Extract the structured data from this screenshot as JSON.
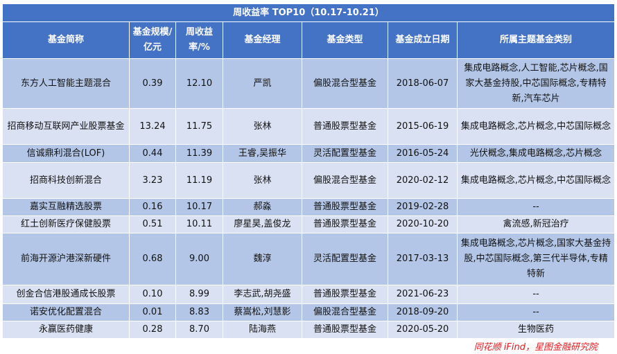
{
  "title": "周收益率 TOP10（10.17-10.21）",
  "headers": [
    "基金简称",
    "基金规模/亿元",
    "周收益率/%",
    "基金经理",
    "基金类型",
    "基金成立日期",
    "所属主题基金类别"
  ],
  "rows": [
    [
      "东方人工智能主题混合",
      "0.39",
      "12.10",
      "严凯",
      "偏股混合型基金",
      "2018-06-07",
      "集成电路概念,人工智能,芯片概念,国家大基金持股,中芯国际概念,专精特新,汽车芯片"
    ],
    [
      "招商移动互联网产业股票基金",
      "13.24",
      "11.75",
      "张林",
      "普通股票型基金",
      "2015-06-19",
      "集成电路概念,芯片概念,中芯国际概念"
    ],
    [
      "信诚鼎利混合(LOF)",
      "0.44",
      "11.39",
      "王睿,吴振华",
      "灵活配置型基金",
      "2016-05-24",
      "光伏概念,集成电路概念,芯片概念"
    ],
    [
      "招商科技创新混合",
      "3.23",
      "11.19",
      "张林",
      "偏股混合型基金",
      "2020-02-12",
      "集成电路概念,芯片概念,中芯国际概念"
    ],
    [
      "嘉实互融精选股票",
      "0.16",
      "10.17",
      "郝淼",
      "普通股票型基金",
      "2019-02-28",
      "--"
    ],
    [
      "红土创新医疗保健股票",
      "0.51",
      "10.11",
      "廖星昊,盖俊龙",
      "普通股票型基金",
      "2020-10-20",
      "禽流感,新冠治疗"
    ],
    [
      "前海开源沪港深新硬件",
      "0.68",
      "9.00",
      "魏淳",
      "灵活配置型基金",
      "2017-03-13",
      "集成电路概念,芯片概念,国家大基金持股,中芯国际概念,第三代半导体,专精特新"
    ],
    [
      "创金合信港股通成长股票",
      "0.10",
      "8.99",
      "李志武,胡尧盛",
      "普通股票型基金",
      "2021-06-23",
      "--"
    ],
    [
      "诺安优化配置混合",
      "0.01",
      "8.83",
      "蔡嵩松,刘慧影",
      "偏股混合型基金",
      "2018-09-20",
      "--"
    ],
    [
      "永赢医药健康",
      "0.28",
      "8.70",
      "陆海燕",
      "普通股票型基金",
      "2020-05-20",
      "生物医药"
    ]
  ],
  "source": "同花顺 iFind，星图金融研究院",
  "colors": {
    "header": "#4472C4",
    "row_dark": "#B4C6E7",
    "row_light": "#D9E1F2",
    "source": "#E8151B"
  }
}
